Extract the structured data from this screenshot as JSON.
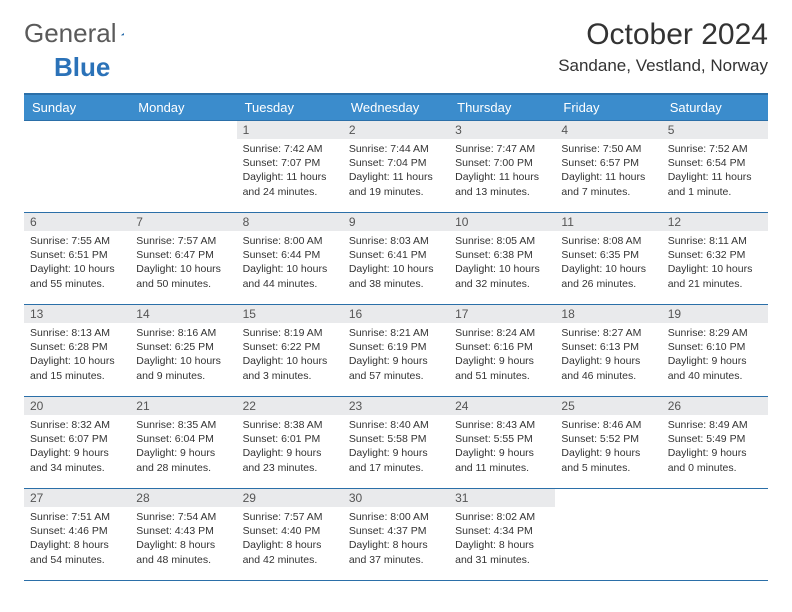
{
  "logo": {
    "general": "General",
    "blue": "Blue"
  },
  "title": "October 2024",
  "location": "Sandane, Vestland, Norway",
  "colors": {
    "header_bg": "#3b8ccc",
    "header_text": "#ffffff",
    "daynum_bg": "#e9eaec",
    "border": "#2b6fa8",
    "text": "#333333",
    "logo_gray": "#5a5a5a",
    "logo_blue": "#2b72b8"
  },
  "weekdays": [
    "Sunday",
    "Monday",
    "Tuesday",
    "Wednesday",
    "Thursday",
    "Friday",
    "Saturday"
  ],
  "weeks": [
    [
      null,
      null,
      {
        "n": "1",
        "sunrise": "7:42 AM",
        "sunset": "7:07 PM",
        "daylight": "11 hours and 24 minutes."
      },
      {
        "n": "2",
        "sunrise": "7:44 AM",
        "sunset": "7:04 PM",
        "daylight": "11 hours and 19 minutes."
      },
      {
        "n": "3",
        "sunrise": "7:47 AM",
        "sunset": "7:00 PM",
        "daylight": "11 hours and 13 minutes."
      },
      {
        "n": "4",
        "sunrise": "7:50 AM",
        "sunset": "6:57 PM",
        "daylight": "11 hours and 7 minutes."
      },
      {
        "n": "5",
        "sunrise": "7:52 AM",
        "sunset": "6:54 PM",
        "daylight": "11 hours and 1 minute."
      }
    ],
    [
      {
        "n": "6",
        "sunrise": "7:55 AM",
        "sunset": "6:51 PM",
        "daylight": "10 hours and 55 minutes."
      },
      {
        "n": "7",
        "sunrise": "7:57 AM",
        "sunset": "6:47 PM",
        "daylight": "10 hours and 50 minutes."
      },
      {
        "n": "8",
        "sunrise": "8:00 AM",
        "sunset": "6:44 PM",
        "daylight": "10 hours and 44 minutes."
      },
      {
        "n": "9",
        "sunrise": "8:03 AM",
        "sunset": "6:41 PM",
        "daylight": "10 hours and 38 minutes."
      },
      {
        "n": "10",
        "sunrise": "8:05 AM",
        "sunset": "6:38 PM",
        "daylight": "10 hours and 32 minutes."
      },
      {
        "n": "11",
        "sunrise": "8:08 AM",
        "sunset": "6:35 PM",
        "daylight": "10 hours and 26 minutes."
      },
      {
        "n": "12",
        "sunrise": "8:11 AM",
        "sunset": "6:32 PM",
        "daylight": "10 hours and 21 minutes."
      }
    ],
    [
      {
        "n": "13",
        "sunrise": "8:13 AM",
        "sunset": "6:28 PM",
        "daylight": "10 hours and 15 minutes."
      },
      {
        "n": "14",
        "sunrise": "8:16 AM",
        "sunset": "6:25 PM",
        "daylight": "10 hours and 9 minutes."
      },
      {
        "n": "15",
        "sunrise": "8:19 AM",
        "sunset": "6:22 PM",
        "daylight": "10 hours and 3 minutes."
      },
      {
        "n": "16",
        "sunrise": "8:21 AM",
        "sunset": "6:19 PM",
        "daylight": "9 hours and 57 minutes."
      },
      {
        "n": "17",
        "sunrise": "8:24 AM",
        "sunset": "6:16 PM",
        "daylight": "9 hours and 51 minutes."
      },
      {
        "n": "18",
        "sunrise": "8:27 AM",
        "sunset": "6:13 PM",
        "daylight": "9 hours and 46 minutes."
      },
      {
        "n": "19",
        "sunrise": "8:29 AM",
        "sunset": "6:10 PM",
        "daylight": "9 hours and 40 minutes."
      }
    ],
    [
      {
        "n": "20",
        "sunrise": "8:32 AM",
        "sunset": "6:07 PM",
        "daylight": "9 hours and 34 minutes."
      },
      {
        "n": "21",
        "sunrise": "8:35 AM",
        "sunset": "6:04 PM",
        "daylight": "9 hours and 28 minutes."
      },
      {
        "n": "22",
        "sunrise": "8:38 AM",
        "sunset": "6:01 PM",
        "daylight": "9 hours and 23 minutes."
      },
      {
        "n": "23",
        "sunrise": "8:40 AM",
        "sunset": "5:58 PM",
        "daylight": "9 hours and 17 minutes."
      },
      {
        "n": "24",
        "sunrise": "8:43 AM",
        "sunset": "5:55 PM",
        "daylight": "9 hours and 11 minutes."
      },
      {
        "n": "25",
        "sunrise": "8:46 AM",
        "sunset": "5:52 PM",
        "daylight": "9 hours and 5 minutes."
      },
      {
        "n": "26",
        "sunrise": "8:49 AM",
        "sunset": "5:49 PM",
        "daylight": "9 hours and 0 minutes."
      }
    ],
    [
      {
        "n": "27",
        "sunrise": "7:51 AM",
        "sunset": "4:46 PM",
        "daylight": "8 hours and 54 minutes."
      },
      {
        "n": "28",
        "sunrise": "7:54 AM",
        "sunset": "4:43 PM",
        "daylight": "8 hours and 48 minutes."
      },
      {
        "n": "29",
        "sunrise": "7:57 AM",
        "sunset": "4:40 PM",
        "daylight": "8 hours and 42 minutes."
      },
      {
        "n": "30",
        "sunrise": "8:00 AM",
        "sunset": "4:37 PM",
        "daylight": "8 hours and 37 minutes."
      },
      {
        "n": "31",
        "sunrise": "8:02 AM",
        "sunset": "4:34 PM",
        "daylight": "8 hours and 31 minutes."
      },
      null,
      null
    ]
  ],
  "labels": {
    "sunrise": "Sunrise: ",
    "sunset": "Sunset: ",
    "daylight": "Daylight: "
  }
}
